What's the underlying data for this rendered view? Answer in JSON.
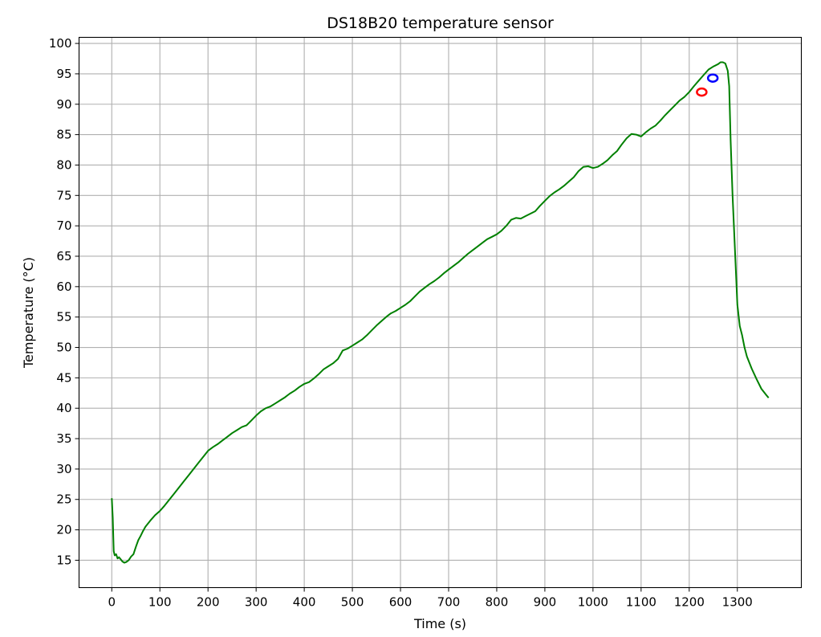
{
  "chart_data": {
    "type": "line",
    "title": "DS18B20 temperature sensor",
    "xlabel": "Time (s)",
    "ylabel": "Temperature (°C)",
    "xlim": [
      -68,
      1433
    ],
    "ylim": [
      10.5,
      101
    ],
    "xticks": [
      0,
      100,
      200,
      300,
      400,
      500,
      600,
      700,
      800,
      900,
      1000,
      1100,
      1200,
      1300
    ],
    "yticks": [
      15,
      20,
      25,
      30,
      35,
      40,
      45,
      50,
      55,
      60,
      65,
      70,
      75,
      80,
      85,
      90,
      95,
      100
    ],
    "grid": true,
    "series": [
      {
        "color": "#008000",
        "x": [
          0,
          2,
          4,
          6,
          9,
          12,
          15,
          18,
          22,
          26,
          30,
          35,
          40,
          45,
          50,
          55,
          60,
          65,
          70,
          80,
          90,
          100,
          110,
          120,
          130,
          140,
          150,
          160,
          170,
          180,
          190,
          200,
          210,
          220,
          230,
          240,
          250,
          260,
          270,
          280,
          290,
          300,
          310,
          320,
          330,
          340,
          350,
          360,
          370,
          380,
          390,
          400,
          410,
          420,
          430,
          440,
          450,
          460,
          470,
          480,
          490,
          500,
          510,
          520,
          530,
          540,
          550,
          560,
          570,
          580,
          590,
          600,
          610,
          620,
          630,
          640,
          650,
          660,
          670,
          680,
          690,
          700,
          710,
          720,
          730,
          740,
          750,
          760,
          770,
          780,
          790,
          800,
          810,
          820,
          830,
          840,
          850,
          860,
          870,
          880,
          890,
          900,
          910,
          920,
          930,
          940,
          950,
          960,
          970,
          980,
          990,
          1000,
          1010,
          1020,
          1030,
          1040,
          1050,
          1060,
          1070,
          1080,
          1090,
          1100,
          1110,
          1120,
          1130,
          1140,
          1150,
          1160,
          1170,
          1180,
          1190,
          1200,
          1210,
          1220,
          1230,
          1240,
          1250,
          1260,
          1265,
          1270,
          1275,
          1280,
          1283,
          1286,
          1290,
          1295,
          1300,
          1305,
          1310,
          1315,
          1320,
          1330,
          1340,
          1350,
          1360,
          1365
        ],
        "y": [
          25.2,
          22.0,
          16.5,
          15.8,
          16.0,
          15.3,
          15.5,
          15.2,
          14.8,
          14.6,
          14.7,
          15.0,
          15.6,
          16.0,
          17.2,
          18.3,
          19.0,
          19.8,
          20.5,
          21.5,
          22.4,
          23.1,
          24.0,
          25.0,
          26.0,
          27.0,
          28.0,
          29.0,
          30.0,
          31.0,
          32.0,
          33.0,
          33.6,
          34.1,
          34.7,
          35.3,
          35.9,
          36.4,
          36.9,
          37.2,
          38.0,
          38.8,
          39.5,
          40.0,
          40.3,
          40.8,
          41.3,
          41.8,
          42.4,
          42.9,
          43.5,
          44.0,
          44.3,
          44.9,
          45.6,
          46.4,
          46.9,
          47.4,
          48.1,
          49.5,
          49.8,
          50.3,
          50.8,
          51.3,
          52.0,
          52.8,
          53.6,
          54.3,
          55.0,
          55.6,
          56.0,
          56.5,
          57.0,
          57.6,
          58.4,
          59.2,
          59.8,
          60.4,
          60.9,
          61.5,
          62.2,
          62.8,
          63.4,
          64.0,
          64.7,
          65.4,
          66.0,
          66.6,
          67.2,
          67.8,
          68.2,
          68.6,
          69.2,
          70.0,
          71.0,
          71.3,
          71.2,
          71.6,
          72.0,
          72.4,
          73.3,
          74.1,
          74.9,
          75.5,
          76.0,
          76.6,
          77.3,
          78.0,
          79.0,
          79.7,
          79.8,
          79.5,
          79.7,
          80.2,
          80.8,
          81.6,
          82.3,
          83.4,
          84.4,
          85.1,
          85.0,
          84.7,
          85.4,
          86.0,
          86.5,
          87.3,
          88.2,
          89.0,
          89.8,
          90.6,
          91.2,
          92.0,
          93.0,
          93.9,
          94.8,
          95.7,
          96.2,
          96.6,
          96.9,
          96.9,
          96.7,
          95.5,
          93.0,
          84.0,
          75.0,
          66.0,
          57.0,
          53.5,
          52.0,
          50.0,
          48.5,
          46.5,
          44.8,
          43.2,
          42.2,
          41.7
        ]
      }
    ],
    "markers": [
      {
        "color": "#ff0000",
        "x": 1226,
        "y": 92.0
      },
      {
        "color": "#0000ff",
        "x": 1249,
        "y": 94.3
      }
    ]
  }
}
